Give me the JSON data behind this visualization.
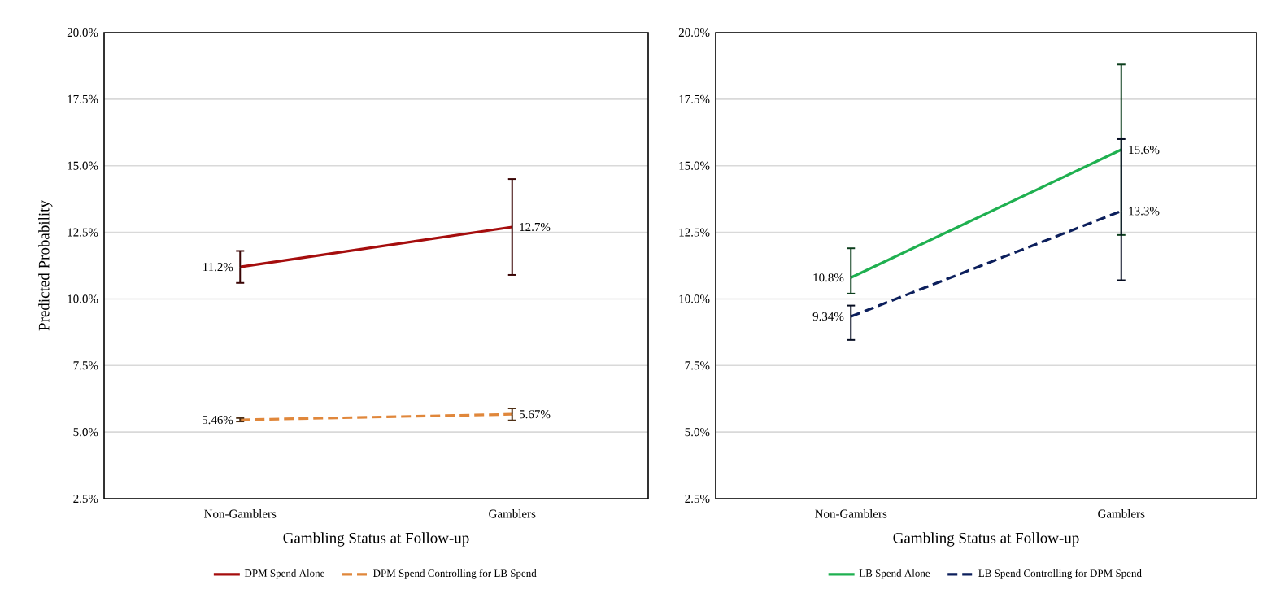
{
  "chart_data": [
    {
      "type": "line",
      "ylabel": "Predicted Probability",
      "xlabel": "Gambling Status at Follow-up",
      "categories": [
        "Non-Gamblers",
        "Gamblers"
      ],
      "ylim": [
        2.5,
        20
      ],
      "yticks": [
        {
          "value": 2.5,
          "label": "2.5%"
        },
        {
          "value": 5,
          "label": "5.0%"
        },
        {
          "value": 7.5,
          "label": "7.5%"
        },
        {
          "value": 10,
          "label": "10.0%"
        },
        {
          "value": 12.5,
          "label": "12.5%"
        },
        {
          "value": 15,
          "label": "15.0%"
        },
        {
          "value": 17.5,
          "label": "17.5%"
        },
        {
          "value": 20,
          "label": "20.0%"
        }
      ],
      "grid": "y",
      "legend": "bottom",
      "marker": "none",
      "series": [
        {
          "name": "DPM Spend Alone",
          "color": "#a50d0d",
          "line_style": "solid",
          "values": [
            11.2,
            12.7
          ],
          "errors": [
            [
              10.6,
              11.8
            ],
            [
              10.9,
              14.5
            ]
          ],
          "value_labels": [
            "11.2%",
            "12.7%"
          ]
        },
        {
          "name": "DPM Spend Controlling for LB Spend",
          "color": "#e0873b",
          "line_style": "dashed",
          "values": [
            5.46,
            5.67
          ],
          "errors": [
            [
              5.4,
              5.53
            ],
            [
              5.44,
              5.89
            ]
          ],
          "value_labels": [
            "5.46%",
            "5.67%"
          ]
        }
      ]
    },
    {
      "type": "line",
      "xlabel": "Gambling Status at Follow-up",
      "categories": [
        "Non-Gamblers",
        "Gamblers"
      ],
      "ylim": [
        2.5,
        20
      ],
      "yticks": [
        {
          "value": 2.5,
          "label": "2.5%"
        },
        {
          "value": 5,
          "label": "5.0%"
        },
        {
          "value": 7.5,
          "label": "7.5%"
        },
        {
          "value": 10,
          "label": "10.0%"
        },
        {
          "value": 12.5,
          "label": "12.5%"
        },
        {
          "value": 15,
          "label": "15.0%"
        },
        {
          "value": 17.5,
          "label": "17.5%"
        },
        {
          "value": 20,
          "label": "20.0%"
        }
      ],
      "grid": "y",
      "legend": "bottom",
      "marker": "none",
      "series": [
        {
          "name": "LB Spend Alone",
          "color": "#1fb050",
          "line_style": "solid",
          "values": [
            10.8,
            15.6
          ],
          "errors": [
            [
              10.2,
              11.9
            ],
            [
              12.4,
              18.8
            ]
          ],
          "value_labels": [
            "10.8%",
            "15.6%"
          ]
        },
        {
          "name": "LB Spend Controlling for DPM Spend",
          "color": "#0c1f5c",
          "line_style": "dashed",
          "values": [
            9.34,
            13.3
          ],
          "errors": [
            [
              8.46,
              9.75
            ],
            [
              10.7,
              16.0
            ]
          ],
          "value_labels": [
            "9.34%",
            "13.3%"
          ]
        }
      ]
    }
  ]
}
